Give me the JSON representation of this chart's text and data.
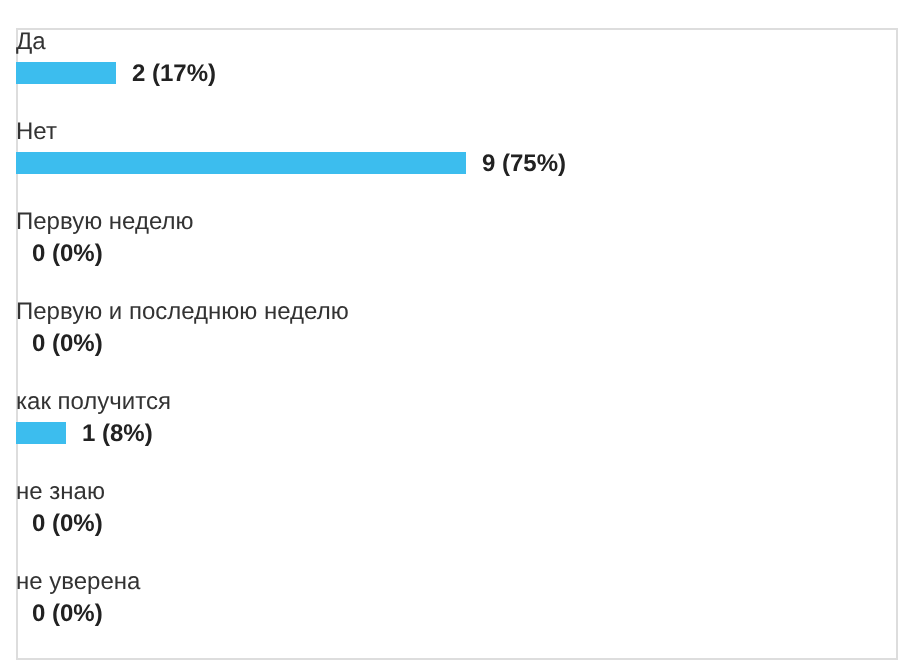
{
  "chart_data": {
    "type": "bar",
    "orientation": "horizontal",
    "color": "#3cbdee",
    "categories": [
      "Да",
      "Нет",
      "Первую неделю",
      "Первую и последнюю неделю",
      "как получится",
      "не знаю",
      "не уверена"
    ],
    "values": [
      2,
      9,
      0,
      0,
      1,
      0,
      0
    ],
    "value_labels": [
      "2 (17%)",
      "9 (75%)",
      "0 (0%)",
      "0 (0%)",
      "1 (8%)",
      "0 (0%)",
      "0 (0%)"
    ]
  }
}
